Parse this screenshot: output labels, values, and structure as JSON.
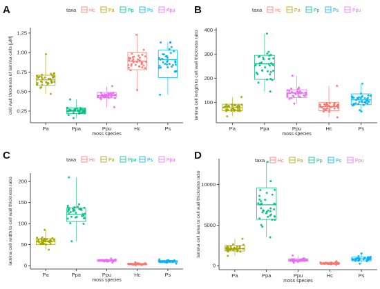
{
  "chart_data": [
    {
      "panel_letter": "A",
      "type": "box",
      "legend_title": "taxa",
      "legend_items": [
        {
          "label": "Hc",
          "color": "#F8766D"
        },
        {
          "label": "Pa",
          "color": "#A3A500"
        },
        {
          "label": "Pp",
          "color": "#00BF7D"
        },
        {
          "label": "Ps",
          "color": "#00B0F6"
        },
        {
          "label": "Ppu",
          "color": "#E76BF3"
        }
      ],
      "xlabel": "moss species",
      "ylabel": "cell wall thickness of lamina cells [µM]",
      "ylim": [
        0.1,
        1.32
      ],
      "yticks": [
        0.25,
        0.5,
        0.75,
        1.0,
        1.25
      ],
      "ytick_labels": [
        "0.25",
        "0.50",
        "0.75",
        "1.00",
        "1.25"
      ],
      "categories": [
        {
          "label": "Pa",
          "color": "#A3A500",
          "q1": 0.58,
          "median": 0.65,
          "q3": 0.71,
          "whisker_low": 0.47,
          "whisker_high": 0.98,
          "n": 36
        },
        {
          "label": "Ppa",
          "color": "#00BF7D",
          "q1": 0.22,
          "median": 0.25,
          "q3": 0.29,
          "whisker_low": 0.16,
          "whisker_high": 0.4,
          "n": 36
        },
        {
          "label": "Ppu",
          "color": "#E76BF3",
          "q1": 0.42,
          "median": 0.45,
          "q3": 0.49,
          "whisker_low": 0.3,
          "whisker_high": 0.57,
          "n": 36
        },
        {
          "label": "Hc",
          "color": "#F8766D",
          "q1": 0.78,
          "median": 0.89,
          "q3": 1.0,
          "whisker_low": 0.52,
          "whisker_high": 1.23,
          "n": 36
        },
        {
          "label": "Ps",
          "color": "#00B0F6",
          "q1": 0.68,
          "median": 0.91,
          "q3": 1.03,
          "whisker_low": 0.46,
          "whisker_high": 1.13,
          "n": 36
        }
      ]
    },
    {
      "panel_letter": "B",
      "type": "box",
      "legend_title": "taxa",
      "legend_items": [
        {
          "label": "Hc",
          "color": "#F8766D"
        },
        {
          "label": "Pa",
          "color": "#A3A500"
        },
        {
          "label": "Pp",
          "color": "#00BF7D"
        },
        {
          "label": "Ps",
          "color": "#00B0F6"
        },
        {
          "label": "Ppu",
          "color": "#E76BF3"
        }
      ],
      "xlabel": "moss species",
      "ylabel": "lamina cell length to cell wall thickness ratio",
      "ylim": [
        15,
        410
      ],
      "yticks": [
        100,
        200,
        300,
        400
      ],
      "ytick_labels": [
        "100",
        "200",
        "300",
        "400"
      ],
      "categories": [
        {
          "label": "Pa",
          "color": "#A3A500",
          "q1": 65,
          "median": 78,
          "q3": 92,
          "whisker_low": 42,
          "whisker_high": 122,
          "n": 36
        },
        {
          "label": "Ppa",
          "color": "#00BF7D",
          "q1": 195,
          "median": 260,
          "q3": 295,
          "whisker_low": 145,
          "whisker_high": 385,
          "n": 36
        },
        {
          "label": "Ppu",
          "color": "#E76BF3",
          "q1": 120,
          "median": 138,
          "q3": 152,
          "whisker_low": 95,
          "whisker_high": 210,
          "n": 36
        },
        {
          "label": "Hc",
          "color": "#F8766D",
          "q1": 65,
          "median": 82,
          "q3": 100,
          "whisker_low": 38,
          "whisker_high": 168,
          "n": 36
        },
        {
          "label": "Ps",
          "color": "#00B0F6",
          "q1": 90,
          "median": 110,
          "q3": 135,
          "whisker_low": 62,
          "whisker_high": 178,
          "n": 36
        }
      ]
    },
    {
      "panel_letter": "C",
      "type": "box",
      "legend_title": "taxa",
      "legend_items": [
        {
          "label": "Hc",
          "color": "#F8766D"
        },
        {
          "label": "Pa",
          "color": "#A3A500"
        },
        {
          "label": "Ppa",
          "color": "#00BF7D"
        },
        {
          "label": "Ps",
          "color": "#00B0F6"
        },
        {
          "label": "Ppu",
          "color": "#E76BF3"
        }
      ],
      "xlabel": "moss species",
      "ylabel": "lamina cell width to cell wall thickness ratio",
      "ylim": [
        -8,
        220
      ],
      "yticks": [
        0,
        50,
        100,
        150,
        200
      ],
      "ytick_labels": [
        "0",
        "50",
        "100",
        "150",
        "200"
      ],
      "categories": [
        {
          "label": "Pa",
          "color": "#A3A500",
          "q1": 50,
          "median": 57,
          "q3": 64,
          "whisker_low": 38,
          "whisker_high": 85,
          "n": 36
        },
        {
          "label": "Ppa",
          "color": "#00BF7D",
          "q1": 105,
          "median": 122,
          "q3": 137,
          "whisker_low": 58,
          "whisker_high": 210,
          "n": 36
        },
        {
          "label": "Ppu",
          "color": "#E76BF3",
          "q1": 10,
          "median": 12,
          "q3": 14,
          "whisker_low": 7,
          "whisker_high": 17,
          "n": 36
        },
        {
          "label": "Hc",
          "color": "#F8766D",
          "q1": 2,
          "median": 4,
          "q3": 5,
          "whisker_low": 1,
          "whisker_high": 8,
          "n": 36
        },
        {
          "label": "Ps",
          "color": "#00B0F6",
          "q1": 8,
          "median": 10,
          "q3": 12,
          "whisker_low": 5,
          "whisker_high": 15,
          "n": 36
        }
      ]
    },
    {
      "panel_letter": "D",
      "type": "box",
      "legend_title": "taxa",
      "legend_items": [
        {
          "label": "Hc",
          "color": "#F8766D"
        },
        {
          "label": "Pa",
          "color": "#A3A500"
        },
        {
          "label": "Pp",
          "color": "#00BF7D"
        },
        {
          "label": "Ps",
          "color": "#00B0F6"
        },
        {
          "label": "Ppu",
          "color": "#E76BF3"
        }
      ],
      "xlabel": "moss species",
      "ylabel": "lamina cell area to cell wall thickness ratio",
      "ylim": [
        -500,
        13200
      ],
      "yticks": [
        0,
        5000,
        10000
      ],
      "ytick_labels": [
        "0",
        "5000",
        "10000"
      ],
      "categories": [
        {
          "label": "Pa",
          "color": "#A3A500",
          "q1": 1800,
          "median": 2100,
          "q3": 2500,
          "whisker_low": 1200,
          "whisker_high": 3300,
          "n": 36
        },
        {
          "label": "Ppa",
          "color": "#00BF7D",
          "q1": 5700,
          "median": 7500,
          "q3": 9600,
          "whisker_low": 3500,
          "whisker_high": 12800,
          "n": 36
        },
        {
          "label": "Ppu",
          "color": "#E76BF3",
          "q1": 550,
          "median": 700,
          "q3": 850,
          "whisker_low": 350,
          "whisker_high": 1250,
          "n": 36
        },
        {
          "label": "Hc",
          "color": "#F8766D",
          "q1": 200,
          "median": 280,
          "q3": 370,
          "whisker_low": 100,
          "whisker_high": 550,
          "n": 36
        },
        {
          "label": "Ps",
          "color": "#00B0F6",
          "q1": 600,
          "median": 850,
          "q3": 1050,
          "whisker_low": 250,
          "whisker_high": 1500,
          "n": 36
        }
      ]
    }
  ]
}
